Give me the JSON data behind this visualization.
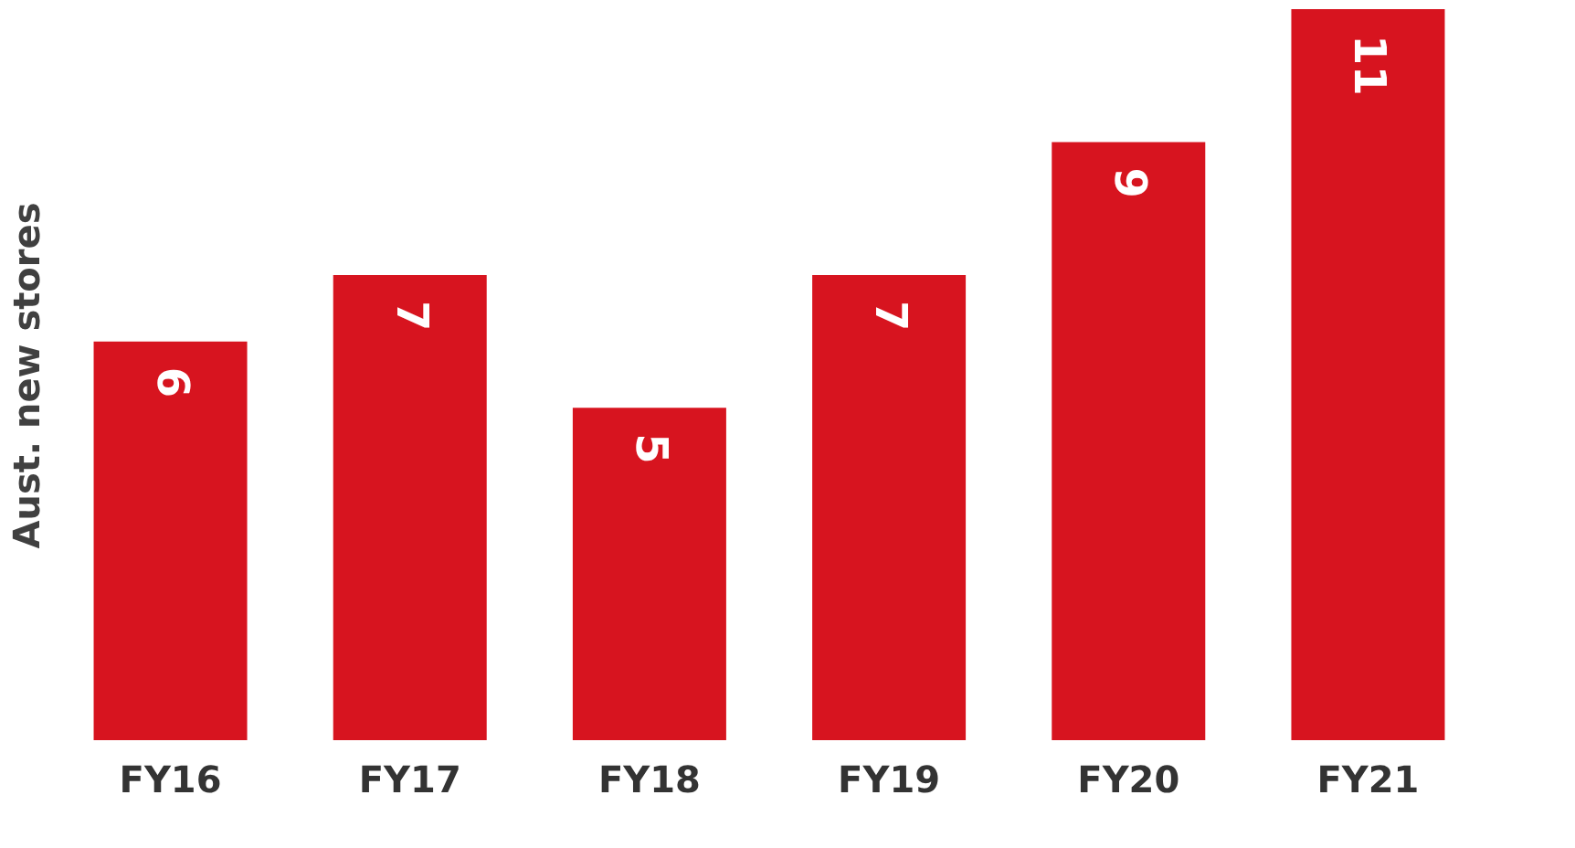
{
  "chart_data": {
    "type": "bar",
    "ylabel": "Aust. new stores",
    "categories": [
      "FY16",
      "FY17",
      "FY18",
      "FY19",
      "FY20",
      "FY21"
    ],
    "values": [
      6,
      7,
      5,
      7,
      9,
      11
    ],
    "color": "#d7141f",
    "data_labels": true,
    "grid": false
  }
}
